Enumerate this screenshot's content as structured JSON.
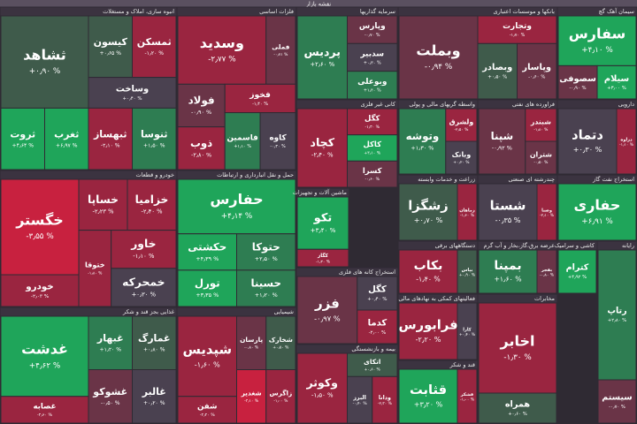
{
  "chart_data": {
    "type": "treemap",
    "title": "نقشه بازار",
    "sectors": [
      {
        "name": "انبوه سازی، املاک و مستغلات",
        "tiles": [
          {
            "name": "ثشاهد",
            "value": 0.9,
            "label": "+۰٫۹۰ %"
          },
          {
            "name": "ثروت",
            "value": 4.64,
            "label": "+۴٫۶۴ %"
          },
          {
            "name": "ثغرب",
            "value": 6.97,
            "label": "+۶٫۹۷ %"
          },
          {
            "name": "کیسون",
            "value": 0.65,
            "label": "+۰٫۶۵ %"
          },
          {
            "name": "ثمسکن",
            "value": -1.2,
            "label": "-۱٫۲۰ %"
          },
          {
            "name": "وساخت",
            "value": 0.4,
            "label": "+۰٫۴۰ %"
          },
          {
            "name": "ثبهساز",
            "value": -2.1,
            "label": "-۲٫۱۰ %"
          },
          {
            "name": "ثنوسا",
            "value": 1.5,
            "label": "+۱٫۵۰ %"
          }
        ]
      },
      {
        "name": "خودرو و قطعات",
        "tiles": [
          {
            "name": "خگستر",
            "value": -3.55,
            "label": "-۳٫۵۵ %"
          },
          {
            "name": "خودرو",
            "value": -2.03,
            "label": "-۲٫۰۳ %"
          },
          {
            "name": "خساپا",
            "value": -2.23,
            "label": "-۲٫۲۳ %"
          },
          {
            "name": "خزامیا",
            "value": -2.4,
            "label": "-۲٫۴۰ %"
          },
          {
            "name": "ختوقا",
            "value": -1.8,
            "label": "-۱٫۸۰ %"
          },
          {
            "name": "خاور",
            "value": -1.1,
            "label": "-۱٫۱۰ %"
          },
          {
            "name": "خمحرکه",
            "value": 0.3,
            "label": "+۰٫۳۰ %"
          }
        ]
      },
      {
        "name": "غذایی بجز قند و شکر",
        "tiles": [
          {
            "name": "غدشت",
            "value": 4.62,
            "label": "+۴٫۶۲ %"
          },
          {
            "name": "غصابه",
            "value": -2.6,
            "label": "-۲٫۶۰ %"
          },
          {
            "name": "غبهار",
            "value": 1.2,
            "label": "+۱٫۲۰ %"
          },
          {
            "name": "غمارگ",
            "value": 0.8,
            "label": "+۰٫۸۰ %"
          },
          {
            "name": "غشوکو",
            "value": -0.5,
            "label": "-۰٫۵۰ %"
          },
          {
            "name": "غالبر",
            "value": 0.2,
            "label": "+۰٫۲۰ %"
          }
        ]
      },
      {
        "name": "فلزات اساسی",
        "tiles": [
          {
            "name": "وسدید",
            "value": -2.77,
            "label": "-۲٫۷۷ %"
          },
          {
            "name": "فملی",
            "value": -0.71,
            "label": "-۰٫۷۱ %"
          },
          {
            "name": "فولاد",
            "value": -0.9,
            "label": "-۰٫۹۰ %"
          },
          {
            "name": "ذوب",
            "value": -2.8,
            "label": "-۲٫۸۰ %"
          },
          {
            "name": "فخوز",
            "value": -1.4,
            "label": "-۱٫۴۰ %"
          },
          {
            "name": "فاسمین",
            "value": 1.1,
            "label": "+۱٫۱۰ %"
          },
          {
            "name": "کاوه",
            "value": -0.3,
            "label": "-۰٫۳۰ %"
          }
        ]
      },
      {
        "name": "حمل و نقل انبارداری و ارتباطات",
        "tiles": [
          {
            "name": "حفارس",
            "value": 4.14,
            "label": "+۴٫۱۴ %"
          },
          {
            "name": "حکشتی",
            "value": 4.39,
            "label": "+۴٫۳۹ %"
          },
          {
            "name": "تورل",
            "value": 3.35,
            "label": "+۳٫۳۵ %"
          },
          {
            "name": "حتوکا",
            "value": 2.5,
            "label": "+۲٫۵۰ %"
          },
          {
            "name": "حسینا",
            "value": 1.2,
            "label": "+۱٫۲۰ %"
          }
        ]
      },
      {
        "name": "شیمیایی",
        "tiles": [
          {
            "name": "شپدیس",
            "value": -1.6,
            "label": "-۱٫۶۰ %"
          },
          {
            "name": "شفن",
            "value": -2.2,
            "label": "-۲٫۲۰ %"
          },
          {
            "name": "پارسان",
            "value": -0.8,
            "label": "-۰٫۸۰ %"
          },
          {
            "name": "شخارک",
            "value": 0.5,
            "label": "+۰٫۵۰ %"
          },
          {
            "name": "شغدیر",
            "value": -3.1,
            "label": "-۳٫۱۰ %"
          },
          {
            "name": "زاگرس",
            "value": -1.0,
            "label": "-۱٫۰۰ %"
          }
        ]
      },
      {
        "name": "سرمایه گذاریها",
        "tiles": [
          {
            "name": "پردیس",
            "value": 2.6,
            "label": "+۲٫۶۰ %"
          },
          {
            "name": "وپارس",
            "value": -0.7,
            "label": "-۰٫۷۰ %"
          },
          {
            "name": "سدبیر",
            "value": 0.3,
            "label": "+۰٫۳۰ %"
          },
          {
            "name": "وبوعلی",
            "value": 1.4,
            "label": "+۱٫۴۰ %"
          }
        ]
      },
      {
        "name": "کانی غیر فلزی",
        "tiles": [
          {
            "name": "کچاد",
            "value": -2.4,
            "label": "-۲٫۴۰ %"
          },
          {
            "name": "کگل",
            "value": -1.3,
            "label": "-۱٫۳۰ %"
          },
          {
            "name": "کاکل",
            "value": 3.1,
            "label": "+۳٫۱۰ %"
          },
          {
            "name": "کسرا",
            "value": -0.6,
            "label": "-۰٫۶۰ %"
          }
        ]
      },
      {
        "name": "ماشین آلات و تجهیزات",
        "tiles": [
          {
            "name": "تکو",
            "value": 3.4,
            "label": "+۳٫۴۰ %"
          },
          {
            "name": "کگاز",
            "value": -1.2,
            "label": "-۱٫۲۰ %"
          }
        ]
      },
      {
        "name": "استخراج کانه های فلزی",
        "tiles": [
          {
            "name": "فزر",
            "value": -0.97,
            "label": "-۰٫۹۷ %"
          },
          {
            "name": "کگل",
            "value": 0.4,
            "label": "+۰٫۴۰ %"
          },
          {
            "name": "کدما",
            "value": -2.0,
            "label": "-۲٫۰۰ %"
          }
        ]
      },
      {
        "name": "بیمه و بازنشستگی",
        "tiles": [
          {
            "name": "وکوثر",
            "value": -1.5,
            "label": "-۱٫۵۰ %"
          },
          {
            "name": "اتکای",
            "value": 0.6,
            "label": "+۰٫۶۰ %"
          },
          {
            "name": "البرز",
            "value": -0.4,
            "label": "-۰٫۴۰ %"
          },
          {
            "name": "ودانا",
            "value": -2.3,
            "label": "-۲٫۳۰ %"
          }
        ]
      },
      {
        "name": "بانکها و موسسات اعتباری",
        "tiles": [
          {
            "name": "وبملت",
            "value": -0.94,
            "label": "-۰٫۹۴ %"
          },
          {
            "name": "وتجارت",
            "value": -1.7,
            "label": "-۱٫۷۰ %"
          },
          {
            "name": "وبصادر",
            "value": 0.5,
            "label": "+۰٫۵۰ %"
          },
          {
            "name": "وپاسار",
            "value": -0.6,
            "label": "-۰٫۶۰ %"
          }
        ]
      },
      {
        "name": "واسطه گریهای مالی و پولی",
        "tiles": [
          {
            "name": "وتوشه",
            "value": 1.3,
            "label": "+۱٫۳۰ %"
          },
          {
            "name": "ولشرق",
            "value": -2.5,
            "label": "-۲٫۵۰ %"
          },
          {
            "name": "وبانک",
            "value": 0.2,
            "label": "+۰٫۲۰ %"
          }
        ]
      },
      {
        "name": "فراورده های نفتی",
        "tiles": [
          {
            "name": "شپنا",
            "value": -0.92,
            "label": "-۰٫۹۲ %"
          },
          {
            "name": "شبندر",
            "value": -1.8,
            "label": "-۱٫۸۰ %"
          },
          {
            "name": "شتران",
            "value": -0.5,
            "label": "-۰٫۵۰ %"
          }
        ]
      },
      {
        "name": "زراعت و خدمات وابسته",
        "tiles": [
          {
            "name": "زشگزا",
            "value": 0.7,
            "label": "+۰٫۷۰ %"
          },
          {
            "name": "زماهان",
            "value": -1.6,
            "label": "-۱٫۶۰ %"
          }
        ]
      },
      {
        "name": "چندرشته ای صنعتی",
        "tiles": [
          {
            "name": "شستا",
            "value": -0.35,
            "label": "-۰٫۳۵ %"
          },
          {
            "name": "وصنا",
            "value": -2.1,
            "label": "-۲٫۱۰ %"
          }
        ]
      },
      {
        "name": "دستگاههای برقی",
        "tiles": [
          {
            "name": "بکاب",
            "value": -1.4,
            "label": "-۱٫۴۰ %"
          },
          {
            "name": "بپاس",
            "value": 0.9,
            "label": "+۰٫۹۰ %"
          }
        ]
      },
      {
        "name": "عرضه برق،گاز،بخار و آب گرم",
        "tiles": [
          {
            "name": "بمپنا",
            "value": 1.6,
            "label": "+۱٫۶۰ %"
          },
          {
            "name": "بفجر",
            "value": -0.8,
            "label": "-۰٫۸۰ %"
          }
        ]
      },
      {
        "name": "فعالیتهای کمکی به نهادهای مالی",
        "tiles": [
          {
            "name": "فرابورس",
            "value": -2.2,
            "label": "-۲٫۲۰ %"
          },
          {
            "name": "کارا",
            "value": 0.4,
            "label": "+۰٫۴۰ %"
          }
        ]
      },
      {
        "name": "قند و شکر",
        "tiles": [
          {
            "name": "قثابت",
            "value": 3.2,
            "label": "+۳٫۲۰ %"
          },
          {
            "name": "قشکر",
            "value": -1.0,
            "label": "-۱٫۰۰ %"
          }
        ]
      },
      {
        "name": "مخابرات",
        "tiles": [
          {
            "name": "اخابر",
            "value": -1.3,
            "label": "-۱٫۳۰ %"
          },
          {
            "name": "همراه",
            "value": 0.6,
            "label": "+۰٫۶۰ %"
          }
        ]
      },
      {
        "name": "سیمان آهک گچ",
        "tiles": [
          {
            "name": "سفارس",
            "value": 4.1,
            "label": "+۴٫۱۰ %"
          },
          {
            "name": "سصوفی",
            "value": -0.9,
            "label": "-۰٫۹۰ %"
          },
          {
            "name": "سیلام",
            "value": 3.0,
            "label": "+۳٫۰۰ %"
          }
        ]
      },
      {
        "name": "دارویی",
        "tiles": [
          {
            "name": "دتماد",
            "value": 0.3,
            "label": "+۰٫۳۰ %"
          },
          {
            "name": "دزاوه",
            "value": -1.1,
            "label": "-۱٫۱۰ %"
          }
        ]
      },
      {
        "name": "استخراج نفت گاز",
        "tiles": [
          {
            "name": "حفاری",
            "value": 6.91,
            "label": "+۶٫۹۱ %"
          }
        ]
      },
      {
        "name": "کاشی و سرامیک",
        "tiles": [
          {
            "name": "کترام",
            "value": 4.92,
            "label": "+۴٫۹۲ %"
          }
        ]
      },
      {
        "name": "رایانه",
        "tiles": [
          {
            "name": "رتاپ",
            "value": 2.8,
            "label": "+۲٫۸۰ %"
          },
          {
            "name": "سیستم",
            "value": -0.7,
            "label": "-۰٫۷۰ %"
          }
        ]
      }
    ]
  }
}
